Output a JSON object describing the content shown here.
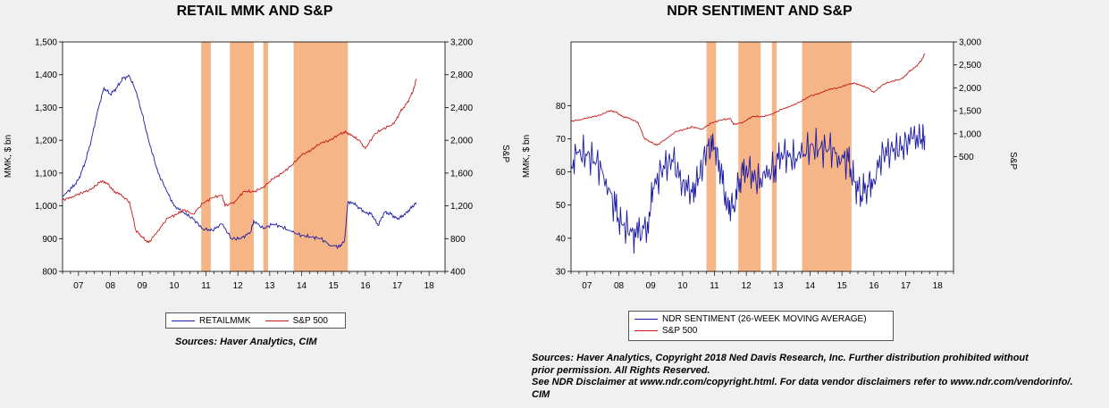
{
  "colors": {
    "blue": "#1a1aa6",
    "red": "#c81818",
    "shade": "#f5b587",
    "plot_bg": "#ffffff"
  },
  "chart_data": [
    {
      "type": "line",
      "title": "RETAIL MMK AND S&P",
      "ylabel": "MMK, $ bn",
      "y2label": "S&P",
      "xlim": [
        2006.5,
        2018.5
      ],
      "ylim": [
        800,
        1500
      ],
      "y2lim": [
        400,
        3200
      ],
      "x_ticks": [
        "07",
        "08",
        "09",
        "10",
        "11",
        "12",
        "13",
        "14",
        "15",
        "16",
        "17",
        "18"
      ],
      "y_ticks": [
        "800",
        "900",
        "1,000",
        "1,100",
        "1,200",
        "1,300",
        "1,400",
        "1,500"
      ],
      "y2_ticks": [
        "400",
        "800",
        "1,200",
        "1,600",
        "2,000",
        "2,400",
        "2,800",
        "3,200"
      ],
      "shaded_periods": [
        [
          2010.85,
          2011.15
        ],
        [
          2011.75,
          2012.5
        ],
        [
          2012.8,
          2012.95
        ],
        [
          2013.75,
          2015.45
        ]
      ],
      "series": [
        {
          "name": "RETAILMMK",
          "axis": "left",
          "x": [
            2006.5,
            2006.8,
            2007.0,
            2007.2,
            2007.4,
            2007.6,
            2007.8,
            2008.0,
            2008.2,
            2008.4,
            2008.6,
            2008.8,
            2009.0,
            2009.2,
            2009.5,
            2009.8,
            2010.0,
            2010.3,
            2010.6,
            2010.9,
            2011.2,
            2011.5,
            2011.8,
            2012.1,
            2012.4,
            2012.5,
            2012.8,
            2013.1,
            2013.4,
            2013.7,
            2014.0,
            2014.3,
            2014.6,
            2014.9,
            2015.2,
            2015.35,
            2015.45,
            2015.6,
            2015.8,
            2016.0,
            2016.2,
            2016.4,
            2016.6,
            2016.8,
            2017.0,
            2017.2,
            2017.4,
            2017.6
          ],
          "values": [
            1030,
            1055,
            1080,
            1130,
            1200,
            1290,
            1360,
            1340,
            1360,
            1390,
            1395,
            1350,
            1280,
            1200,
            1100,
            1040,
            1000,
            980,
            960,
            930,
            925,
            945,
            900,
            900,
            920,
            955,
            930,
            945,
            935,
            920,
            910,
            905,
            900,
            880,
            875,
            895,
            1010,
            1010,
            995,
            980,
            975,
            940,
            980,
            975,
            960,
            970,
            990,
            1010
          ]
        },
        {
          "name": "S&P 500",
          "axis": "right",
          "x": [
            2006.5,
            2006.8,
            2007.1,
            2007.4,
            2007.7,
            2007.9,
            2008.1,
            2008.3,
            2008.6,
            2008.8,
            2009.0,
            2009.2,
            2009.5,
            2009.8,
            2010.1,
            2010.3,
            2010.6,
            2010.9,
            2011.2,
            2011.5,
            2011.6,
            2011.9,
            2012.2,
            2012.5,
            2012.8,
            2013.1,
            2013.4,
            2013.7,
            2014.0,
            2014.3,
            2014.6,
            2014.9,
            2015.2,
            2015.4,
            2015.6,
            2015.8,
            2016.0,
            2016.3,
            2016.6,
            2016.9,
            2017.1,
            2017.3,
            2017.5,
            2017.6
          ],
          "values": [
            1270,
            1310,
            1360,
            1400,
            1500,
            1480,
            1380,
            1340,
            1250,
            900,
            820,
            750,
            900,
            1050,
            1100,
            1150,
            1100,
            1230,
            1300,
            1330,
            1200,
            1250,
            1380,
            1370,
            1430,
            1530,
            1600,
            1700,
            1820,
            1880,
            1970,
            2000,
            2080,
            2100,
            2050,
            2000,
            1900,
            2080,
            2150,
            2200,
            2350,
            2450,
            2600,
            2750
          ]
        }
      ]
    },
    {
      "type": "line",
      "title": "NDR SENTIMENT AND S&P",
      "ylabel": "MMK, $ bn",
      "y2label": "S&P",
      "xlim": [
        2006.5,
        2018.5
      ],
      "ylim": [
        30,
        99.2
      ],
      "y2lim": [
        -2000,
        3000
      ],
      "x_ticks": [
        "07",
        "08",
        "09",
        "10",
        "11",
        "12",
        "13",
        "14",
        "15",
        "16",
        "17",
        "18"
      ],
      "y_ticks": [
        "30",
        "40",
        "50",
        "60",
        "70",
        "80"
      ],
      "y2_ticks": [
        "500",
        "1,000",
        "1,500",
        "2,000",
        "2,500",
        "3,000"
      ],
      "shaded_periods": [
        [
          2010.75,
          2011.05
        ],
        [
          2011.75,
          2012.45
        ],
        [
          2012.8,
          2012.95
        ],
        [
          2013.75,
          2015.3
        ]
      ],
      "series": [
        {
          "name": "NDR SENTIMENT (26-WEEK MOVING AVERAGE)",
          "axis": "left",
          "x": [
            2006.5,
            2006.7,
            2007.0,
            2007.3,
            2007.6,
            2007.9,
            2008.1,
            2008.4,
            2008.6,
            2008.9,
            2009.1,
            2009.4,
            2009.7,
            2010.0,
            2010.3,
            2010.5,
            2010.8,
            2011.0,
            2011.2,
            2011.4,
            2011.6,
            2011.8,
            2012.0,
            2012.3,
            2012.6,
            2012.9,
            2013.1,
            2013.4,
            2013.7,
            2014.0,
            2014.3,
            2014.6,
            2014.9,
            2015.2,
            2015.4,
            2015.6,
            2015.8,
            2016.0,
            2016.3,
            2016.6,
            2016.9,
            2017.2,
            2017.5,
            2017.6
          ],
          "values": [
            62,
            66,
            65,
            63,
            58,
            48,
            44,
            42,
            40,
            45,
            55,
            62,
            63,
            57,
            54,
            58,
            68,
            67,
            60,
            50,
            50,
            58,
            62,
            57,
            58,
            62,
            66,
            64,
            64,
            68,
            67,
            67,
            65,
            63,
            57,
            53,
            56,
            58,
            66,
            66,
            68,
            70,
            70,
            71
          ]
        },
        {
          "name": "S&P 500",
          "axis": "right",
          "x": [
            2006.5,
            2006.8,
            2007.1,
            2007.4,
            2007.7,
            2007.9,
            2008.1,
            2008.3,
            2008.6,
            2008.8,
            2009.0,
            2009.2,
            2009.5,
            2009.8,
            2010.1,
            2010.3,
            2010.6,
            2010.9,
            2011.2,
            2011.5,
            2011.6,
            2011.9,
            2012.2,
            2012.5,
            2012.8,
            2013.1,
            2013.4,
            2013.7,
            2014.0,
            2014.3,
            2014.6,
            2014.9,
            2015.2,
            2015.4,
            2015.6,
            2015.8,
            2016.0,
            2016.3,
            2016.6,
            2016.9,
            2017.1,
            2017.3,
            2017.5,
            2017.6
          ],
          "values": [
            1270,
            1310,
            1360,
            1400,
            1500,
            1480,
            1380,
            1340,
            1250,
            900,
            820,
            750,
            900,
            1050,
            1100,
            1150,
            1100,
            1230,
            1300,
            1330,
            1200,
            1250,
            1380,
            1370,
            1430,
            1530,
            1600,
            1700,
            1820,
            1880,
            1970,
            2000,
            2080,
            2100,
            2050,
            2000,
            1900,
            2080,
            2150,
            2200,
            2350,
            2450,
            2600,
            2750
          ]
        }
      ]
    }
  ],
  "left_legend": [
    "RETAILMMK",
    "S&P 500"
  ],
  "left_sources": "Sources:  Haver Analytics, CIM",
  "right_legend": [
    "NDR SENTIMENT (26-WEEK MOVING AVERAGE)",
    "S&P 500"
  ],
  "right_sources": [
    "Sources:  Haver Analytics, Copyright 2018 Ned Davis Research, Inc. Further distribution prohibited without",
    "prior permission.  All Rights Reserved.",
    "See NDR Disclaimer at www.ndr.com/copyright.html.  For data vendor disclaimers refer to  www.ndr.com/vendorinfo/.",
    "CIM"
  ]
}
